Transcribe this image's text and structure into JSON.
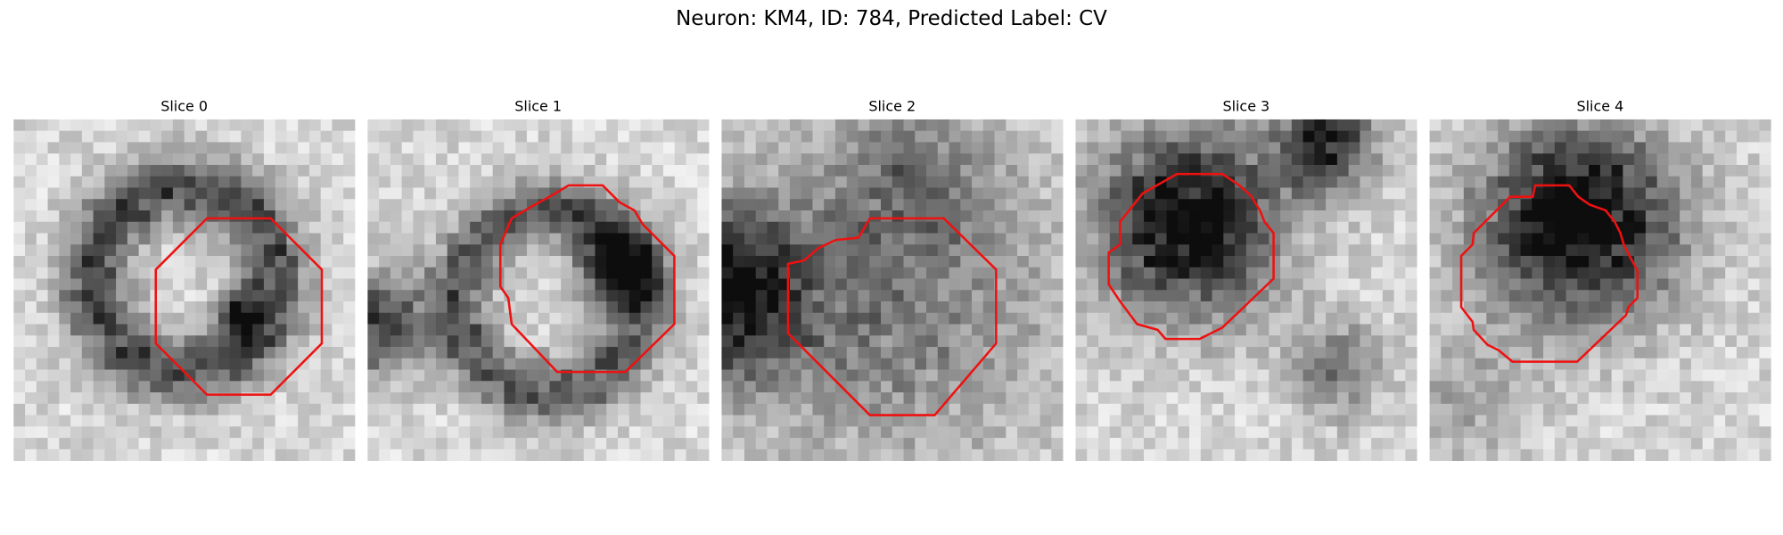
{
  "title": "Neuron: KM4, ID: 784, Predicted Label: CV",
  "panels": [
    {
      "title": "Slice 0"
    },
    {
      "title": "Slice 1"
    },
    {
      "title": "Slice 2"
    },
    {
      "title": "Slice 3"
    },
    {
      "title": "Slice 4"
    }
  ]
}
